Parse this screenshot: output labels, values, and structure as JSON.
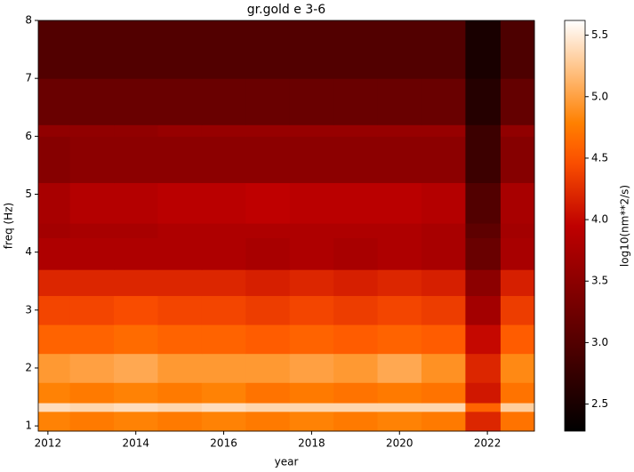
{
  "chart_data": {
    "type": "heatmap",
    "title": "gr.gold e 3-6",
    "x_label": "year",
    "y_label": "freq (Hz)",
    "colorbar_label": "log10(nm**2/s)",
    "colormap": "gist_heat",
    "x_bins": [
      2011.78,
      2012.5,
      2013.5,
      2014.5,
      2015.5,
      2016.5,
      2017.5,
      2018.5,
      2019.5,
      2020.5,
      2021.5,
      2022.3,
      2023.07
    ],
    "y_bins": [
      0.91,
      1.25,
      1.4,
      1.75,
      2.25,
      2.75,
      3.25,
      3.7,
      4.25,
      4.5,
      5.2,
      6.0,
      6.2,
      7,
      8
    ],
    "z": [
      [
        4.8,
        4.75,
        4.8,
        4.75,
        4.8,
        4.75,
        4.8,
        4.75,
        4.8,
        4.75,
        4.2,
        4.7
      ],
      [
        5.4,
        5.35,
        5.4,
        5.35,
        5.4,
        5.35,
        5.35,
        5.35,
        5.35,
        5.35,
        4.6,
        5.3
      ],
      [
        4.8,
        4.75,
        4.8,
        4.75,
        4.8,
        4.7,
        4.75,
        4.7,
        4.75,
        4.7,
        4.1,
        4.7
      ],
      [
        4.95,
        5.0,
        5.05,
        4.95,
        4.95,
        4.95,
        5.0,
        4.95,
        5.05,
        4.9,
        4.2,
        4.85
      ],
      [
        4.6,
        4.6,
        4.65,
        4.6,
        4.6,
        4.55,
        4.6,
        4.55,
        4.6,
        4.55,
        4.0,
        4.55
      ],
      [
        4.4,
        4.4,
        4.45,
        4.4,
        4.4,
        4.35,
        4.4,
        4.35,
        4.4,
        4.35,
        3.7,
        4.35
      ],
      [
        4.2,
        4.2,
        4.2,
        4.2,
        4.2,
        4.15,
        4.2,
        4.15,
        4.2,
        4.15,
        3.5,
        4.15
      ],
      [
        3.8,
        3.8,
        3.8,
        3.8,
        3.8,
        3.75,
        3.8,
        3.75,
        3.8,
        3.75,
        3.2,
        3.75
      ],
      [
        3.7,
        3.75,
        3.75,
        3.8,
        3.8,
        3.8,
        3.8,
        3.8,
        3.8,
        3.75,
        3.1,
        3.7
      ],
      [
        3.75,
        3.85,
        3.85,
        3.9,
        3.9,
        3.95,
        3.9,
        3.9,
        3.9,
        3.85,
        3.0,
        3.75
      ],
      [
        3.45,
        3.5,
        3.5,
        3.5,
        3.5,
        3.5,
        3.5,
        3.5,
        3.5,
        3.5,
        2.8,
        3.45
      ],
      [
        3.55,
        3.55,
        3.55,
        3.6,
        3.6,
        3.6,
        3.6,
        3.6,
        3.6,
        3.6,
        2.8,
        3.55
      ],
      [
        3.2,
        3.2,
        3.2,
        3.2,
        3.2,
        3.2,
        3.2,
        3.2,
        3.2,
        3.2,
        2.6,
        3.15
      ],
      [
        3.0,
        3.0,
        3.0,
        3.0,
        3.0,
        3.0,
        3.0,
        3.0,
        3.0,
        3.0,
        2.5,
        2.95
      ]
    ],
    "xlim": [
      2011.78,
      2023.07
    ],
    "ylim": [
      0.91,
      8
    ],
    "clim": [
      2.28,
      5.62
    ],
    "xticks": [
      2012,
      2014,
      2016,
      2018,
      2020,
      2022
    ],
    "yticks": [
      1,
      2,
      3,
      4,
      5,
      6,
      7,
      8
    ],
    "cticks": [
      2.5,
      {
        "value": 3,
        "label": "3.0"
      },
      3.5,
      {
        "value": 4,
        "label": "4.0"
      },
      4.5,
      {
        "value": 5,
        "label": "5.0"
      },
      5.5
    ]
  }
}
